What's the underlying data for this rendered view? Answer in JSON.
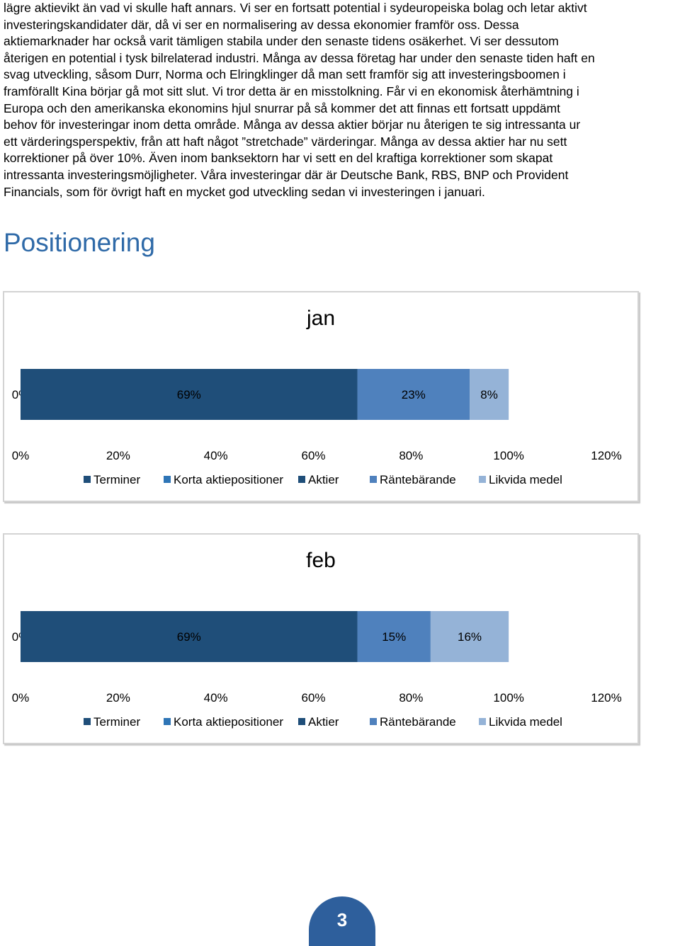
{
  "body": {
    "text": "lägre aktievikt än vad vi skulle haft annars. Vi ser en fortsatt potential i sydeuropeiska bolag och letar aktivt\ninvesteringskandidater där, då vi ser en normalisering av dessa ekonomier framför oss. Dessa\naktiemarknader har också varit tämligen stabila under den senaste tidens osäkerhet. Vi ser dessutom\nåterigen en potential i tysk bilrelaterad industri. Många av dessa företag har under den senaste tiden haft en\nsvag utveckling, såsom Durr, Norma och Elringklinger då man sett framför sig att investeringsboomen i\nframförallt Kina börjar gå mot sitt slut. Vi tror detta är en misstolkning. Får vi en ekonomisk återhämtning i\nEuropa och den amerikanska ekonomins hjul snurrar på så kommer det att finnas ett fortsatt uppdämt\nbehov för investeringar inom detta område. Många av dessa aktier börjar nu återigen te sig intressanta ur\nett värderingsperspektiv, från att haft något ”stretchade” värderingar. Många av dessa aktier har nu sett\nkorrektioner på över 10%. Även inom banksektorn har vi sett en del kraftiga korrektioner som skapat\nintressanta investeringsmöjligheter. Våra investeringar där är Deutsche Bank, RBS, BNP och Provident\nFinancials, som för övrigt haft en mycket god utveckling sedan vi investeringen i januari."
  },
  "section": {
    "heading": "Positionering"
  },
  "chart_data": [
    {
      "type": "bar",
      "orientation": "horizontal-stacked",
      "title": "jan",
      "categories": [
        ""
      ],
      "series": [
        {
          "name": "Terminer",
          "values": [
            0
          ],
          "label": "0%",
          "color": "#1f4e79"
        },
        {
          "name": "Korta aktiepositioner",
          "values": [
            0
          ],
          "label": "",
          "color": "#2e75b6"
        },
        {
          "name": "Aktier",
          "values": [
            69
          ],
          "label": "69%",
          "color": "#1f4e79"
        },
        {
          "name": "Räntebärande",
          "values": [
            23
          ],
          "label": "23%",
          "color": "#4f81bd"
        },
        {
          "name": "Likvida medel",
          "values": [
            8
          ],
          "label": "8%",
          "color": "#95b3d7"
        }
      ],
      "xlim": [
        0,
        120
      ],
      "xticks": [
        "0%",
        "20%",
        "40%",
        "60%",
        "80%",
        "100%",
        "120%"
      ],
      "legend_position": "bottom"
    },
    {
      "type": "bar",
      "orientation": "horizontal-stacked",
      "title": "feb",
      "categories": [
        ""
      ],
      "series": [
        {
          "name": "Terminer",
          "values": [
            0
          ],
          "label": "0%",
          "color": "#1f4e79"
        },
        {
          "name": "Korta aktiepositioner",
          "values": [
            0
          ],
          "label": "",
          "color": "#2e75b6"
        },
        {
          "name": "Aktier",
          "values": [
            69
          ],
          "label": "69%",
          "color": "#1f4e79"
        },
        {
          "name": "Räntebärande",
          "values": [
            15
          ],
          "label": "15%",
          "color": "#4f81bd"
        },
        {
          "name": "Likvida medel",
          "values": [
            16
          ],
          "label": "16%",
          "color": "#95b3d7"
        }
      ],
      "xlim": [
        0,
        120
      ],
      "xticks": [
        "0%",
        "20%",
        "40%",
        "60%",
        "80%",
        "100%",
        "120%"
      ],
      "legend_position": "bottom"
    }
  ],
  "footer": {
    "page_number": "3"
  }
}
